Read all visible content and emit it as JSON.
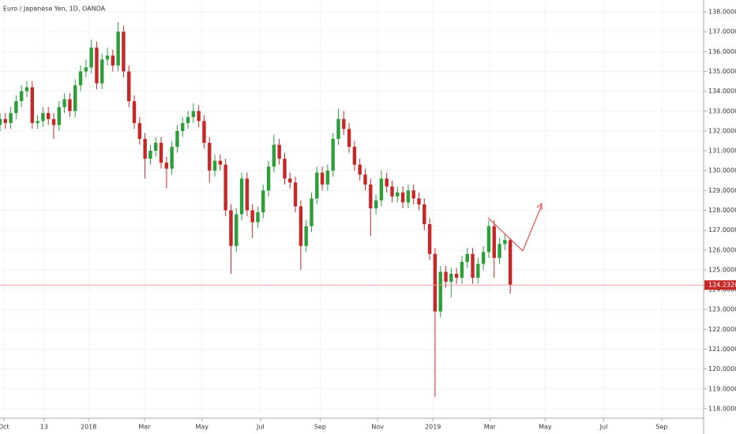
{
  "chart_data": {
    "type": "candlestick",
    "title": "Euro / Japanese Yen, 1D, OANDA",
    "up_color": "#2e9e3a",
    "down_color": "#c62828",
    "open": [
      132.3,
      132.6,
      132.4,
      132.9,
      133.5,
      134.0,
      134.2,
      132.4,
      132.5,
      132.9,
      132.6,
      132.3,
      133.2,
      133.6,
      133.0,
      134.3,
      135.0,
      135.2,
      136.2,
      134.4,
      135.6,
      135.8,
      135.3,
      137.0,
      135.0,
      133.5,
      132.4,
      131.6,
      130.6,
      131.0,
      131.4,
      130.4,
      130.1,
      131.2,
      132.0,
      132.4,
      132.7,
      133.0,
      132.5,
      131.4,
      130.0,
      130.5,
      130.3,
      128.0,
      126.2,
      127.8,
      129.6,
      128.0,
      127.4,
      127.9,
      129.0,
      130.2,
      131.3,
      130.6,
      129.6,
      129.4,
      128.2,
      126.2,
      127.2,
      128.6,
      129.9,
      129.3,
      130.0,
      131.6,
      132.6,
      132.1,
      131.2,
      130.3,
      129.8,
      129.3,
      128.1,
      128.5,
      129.6,
      129.2,
      128.7,
      128.9,
      128.4,
      129.0,
      128.6,
      128.3,
      127.3,
      125.8,
      122.9,
      124.9,
      124.4,
      124.8,
      124.6,
      125.4,
      125.8,
      124.6,
      125.3,
      125.9,
      127.2,
      125.6,
      126.3,
      126.5
    ],
    "high": [
      132.9,
      132.9,
      133.2,
      133.8,
      134.3,
      134.5,
      134.5,
      132.8,
      133.2,
      133.2,
      132.9,
      133.5,
      133.9,
      133.9,
      134.6,
      135.3,
      135.6,
      136.6,
      136.5,
      135.9,
      136.2,
      136.1,
      137.5,
      137.3,
      135.3,
      133.8,
      132.7,
      131.9,
      131.3,
      131.7,
      131.7,
      130.7,
      131.5,
      132.3,
      132.7,
      133.0,
      133.4,
      133.3,
      132.8,
      131.7,
      130.8,
      130.8,
      130.6,
      128.3,
      128.1,
      129.9,
      129.9,
      128.3,
      128.2,
      129.3,
      130.5,
      131.8,
      131.6,
      130.9,
      129.9,
      129.7,
      128.5,
      127.5,
      128.9,
      130.2,
      130.2,
      130.3,
      131.9,
      133.1,
      133.0,
      132.4,
      131.5,
      130.6,
      130.1,
      129.6,
      128.8,
      130.0,
      129.9,
      129.5,
      129.2,
      129.2,
      129.3,
      129.3,
      128.9,
      128.6,
      127.6,
      126.1,
      125.2,
      125.2,
      125.1,
      125.1,
      125.7,
      126.1,
      126.1,
      125.6,
      126.2,
      127.5,
      127.5,
      126.6,
      126.8,
      126.6
    ],
    "low": [
      132.0,
      132.1,
      132.1,
      132.6,
      133.2,
      133.7,
      132.1,
      132.1,
      132.2,
      132.3,
      131.6,
      132.0,
      132.9,
      132.7,
      132.7,
      134.0,
      134.7,
      134.9,
      134.1,
      134.1,
      135.3,
      135.0,
      135.0,
      134.7,
      133.2,
      132.1,
      131.3,
      129.6,
      130.3,
      130.7,
      130.1,
      129.1,
      129.8,
      130.9,
      131.7,
      132.1,
      132.4,
      132.2,
      131.1,
      129.4,
      129.7,
      130.0,
      127.7,
      124.8,
      125.9,
      127.5,
      127.7,
      126.6,
      127.1,
      127.6,
      128.7,
      129.9,
      130.3,
      129.3,
      129.1,
      127.9,
      125.0,
      125.9,
      126.9,
      128.3,
      129.0,
      129.0,
      129.7,
      131.3,
      131.8,
      130.9,
      130.0,
      129.5,
      129.0,
      126.7,
      127.8,
      128.2,
      128.9,
      128.4,
      128.4,
      128.1,
      128.1,
      128.3,
      128.0,
      127.0,
      125.5,
      118.6,
      122.6,
      124.1,
      123.6,
      124.3,
      124.3,
      125.1,
      124.3,
      124.3,
      125.0,
      125.6,
      124.6,
      125.3,
      126.0,
      123.8
    ],
    "close": [
      132.6,
      132.4,
      132.9,
      133.5,
      134.0,
      134.2,
      132.4,
      132.5,
      132.9,
      132.6,
      132.3,
      133.2,
      133.6,
      133.0,
      134.3,
      135.0,
      135.2,
      136.2,
      134.4,
      135.6,
      135.8,
      135.3,
      137.0,
      135.0,
      133.5,
      132.4,
      131.6,
      130.6,
      131.0,
      131.4,
      130.4,
      130.1,
      131.2,
      132.0,
      132.4,
      132.7,
      133.0,
      132.5,
      131.4,
      130.0,
      130.5,
      130.3,
      128.0,
      126.2,
      127.8,
      129.6,
      128.0,
      127.4,
      127.9,
      129.0,
      130.2,
      131.3,
      130.6,
      129.6,
      129.4,
      128.2,
      126.2,
      127.2,
      128.6,
      129.9,
      129.3,
      130.0,
      131.6,
      132.6,
      132.1,
      131.2,
      130.3,
      129.8,
      129.3,
      128.1,
      128.5,
      129.6,
      129.2,
      128.7,
      128.9,
      128.4,
      129.0,
      128.6,
      128.3,
      127.3,
      125.8,
      122.9,
      124.9,
      124.4,
      124.8,
      124.6,
      125.4,
      125.8,
      124.6,
      125.3,
      125.9,
      127.2,
      125.6,
      126.3,
      126.5,
      124.232
    ],
    "last_price": {
      "value": 124.232,
      "label": "124.2320"
    },
    "xlim": [
      0,
      131
    ],
    "xticks": [
      {
        "value": 0.7,
        "label": "Oct"
      },
      {
        "value": 8.2,
        "label": "13"
      },
      {
        "value": 16.5,
        "label": "2018"
      },
      {
        "value": 26.9,
        "label": "Mar"
      },
      {
        "value": 37.6,
        "label": "May"
      },
      {
        "value": 48.5,
        "label": "Jul"
      },
      {
        "value": 59.6,
        "label": "Sep"
      },
      {
        "value": 70.3,
        "label": "Nov"
      },
      {
        "value": 80.6,
        "label": "2019"
      },
      {
        "value": 91.2,
        "label": "Mar"
      },
      {
        "value": 101.5,
        "label": "May"
      },
      {
        "value": 112.4,
        "label": "Jul"
      },
      {
        "value": 123.2,
        "label": "Sep"
      }
    ],
    "ylim": [
      117.52,
      138.6
    ],
    "yticks": [
      {
        "value": 118,
        "label": "118.0000"
      },
      {
        "value": 119,
        "label": "119.0000"
      },
      {
        "value": 120,
        "label": "120.0000"
      },
      {
        "value": 121,
        "label": "121.0000"
      },
      {
        "value": 122,
        "label": "122.0000"
      },
      {
        "value": 123,
        "label": "123.0000"
      },
      {
        "value": 124,
        "label": "124.0000"
      },
      {
        "value": 125,
        "label": "125.0000"
      },
      {
        "value": 126,
        "label": "126.0000"
      },
      {
        "value": 127,
        "label": "127.0000"
      },
      {
        "value": 128,
        "label": "128.0000"
      },
      {
        "value": 129,
        "label": "129.0000"
      },
      {
        "value": 130,
        "label": "130.0000"
      },
      {
        "value": 131,
        "label": "131.0000"
      },
      {
        "value": 132,
        "label": "132.0000"
      },
      {
        "value": 133,
        "label": "133.0000"
      },
      {
        "value": 134,
        "label": "134.0000"
      },
      {
        "value": 135,
        "label": "135.0000"
      },
      {
        "value": 136,
        "label": "136.0000"
      },
      {
        "value": 137,
        "label": "137.0000"
      },
      {
        "value": 138,
        "label": "138.0000"
      }
    ]
  }
}
